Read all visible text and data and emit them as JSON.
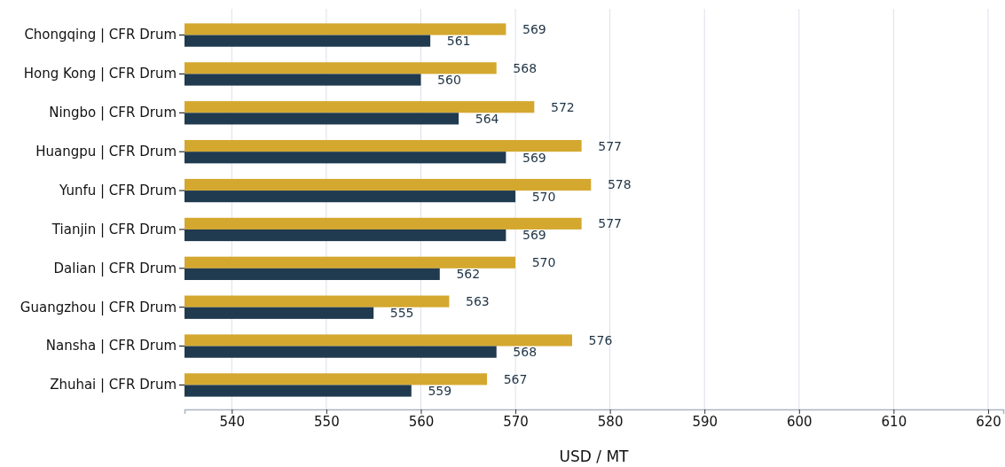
{
  "chart_data": {
    "type": "bar",
    "orientation": "horizontal",
    "xlabel": "USD / MT",
    "categories": [
      "Chongqing | CFR Drum",
      "Hong Kong | CFR Drum",
      "Ningbo | CFR Drum",
      "Huangpu | CFR Drum",
      "Yunfu | CFR Drum",
      "Tianjin | CFR Drum",
      "Dalian | CFR Drum",
      "Guangzhou | CFR Drum",
      "Nansha | CFR Drum",
      "Zhuhai | CFR Drum"
    ],
    "series": [
      {
        "color": "#d4a82f",
        "values": [
          569,
          568,
          572,
          577,
          578,
          577,
          570,
          563,
          576,
          567
        ]
      },
      {
        "color": "#203a4f",
        "values": [
          561,
          560,
          564,
          569,
          570,
          569,
          562,
          555,
          568,
          559
        ]
      }
    ],
    "xlim": [
      535,
      621.6
    ],
    "xticks": [
      540,
      550,
      560,
      570,
      580,
      590,
      600,
      610,
      620
    ],
    "grid": "x",
    "data_labels": true
  }
}
